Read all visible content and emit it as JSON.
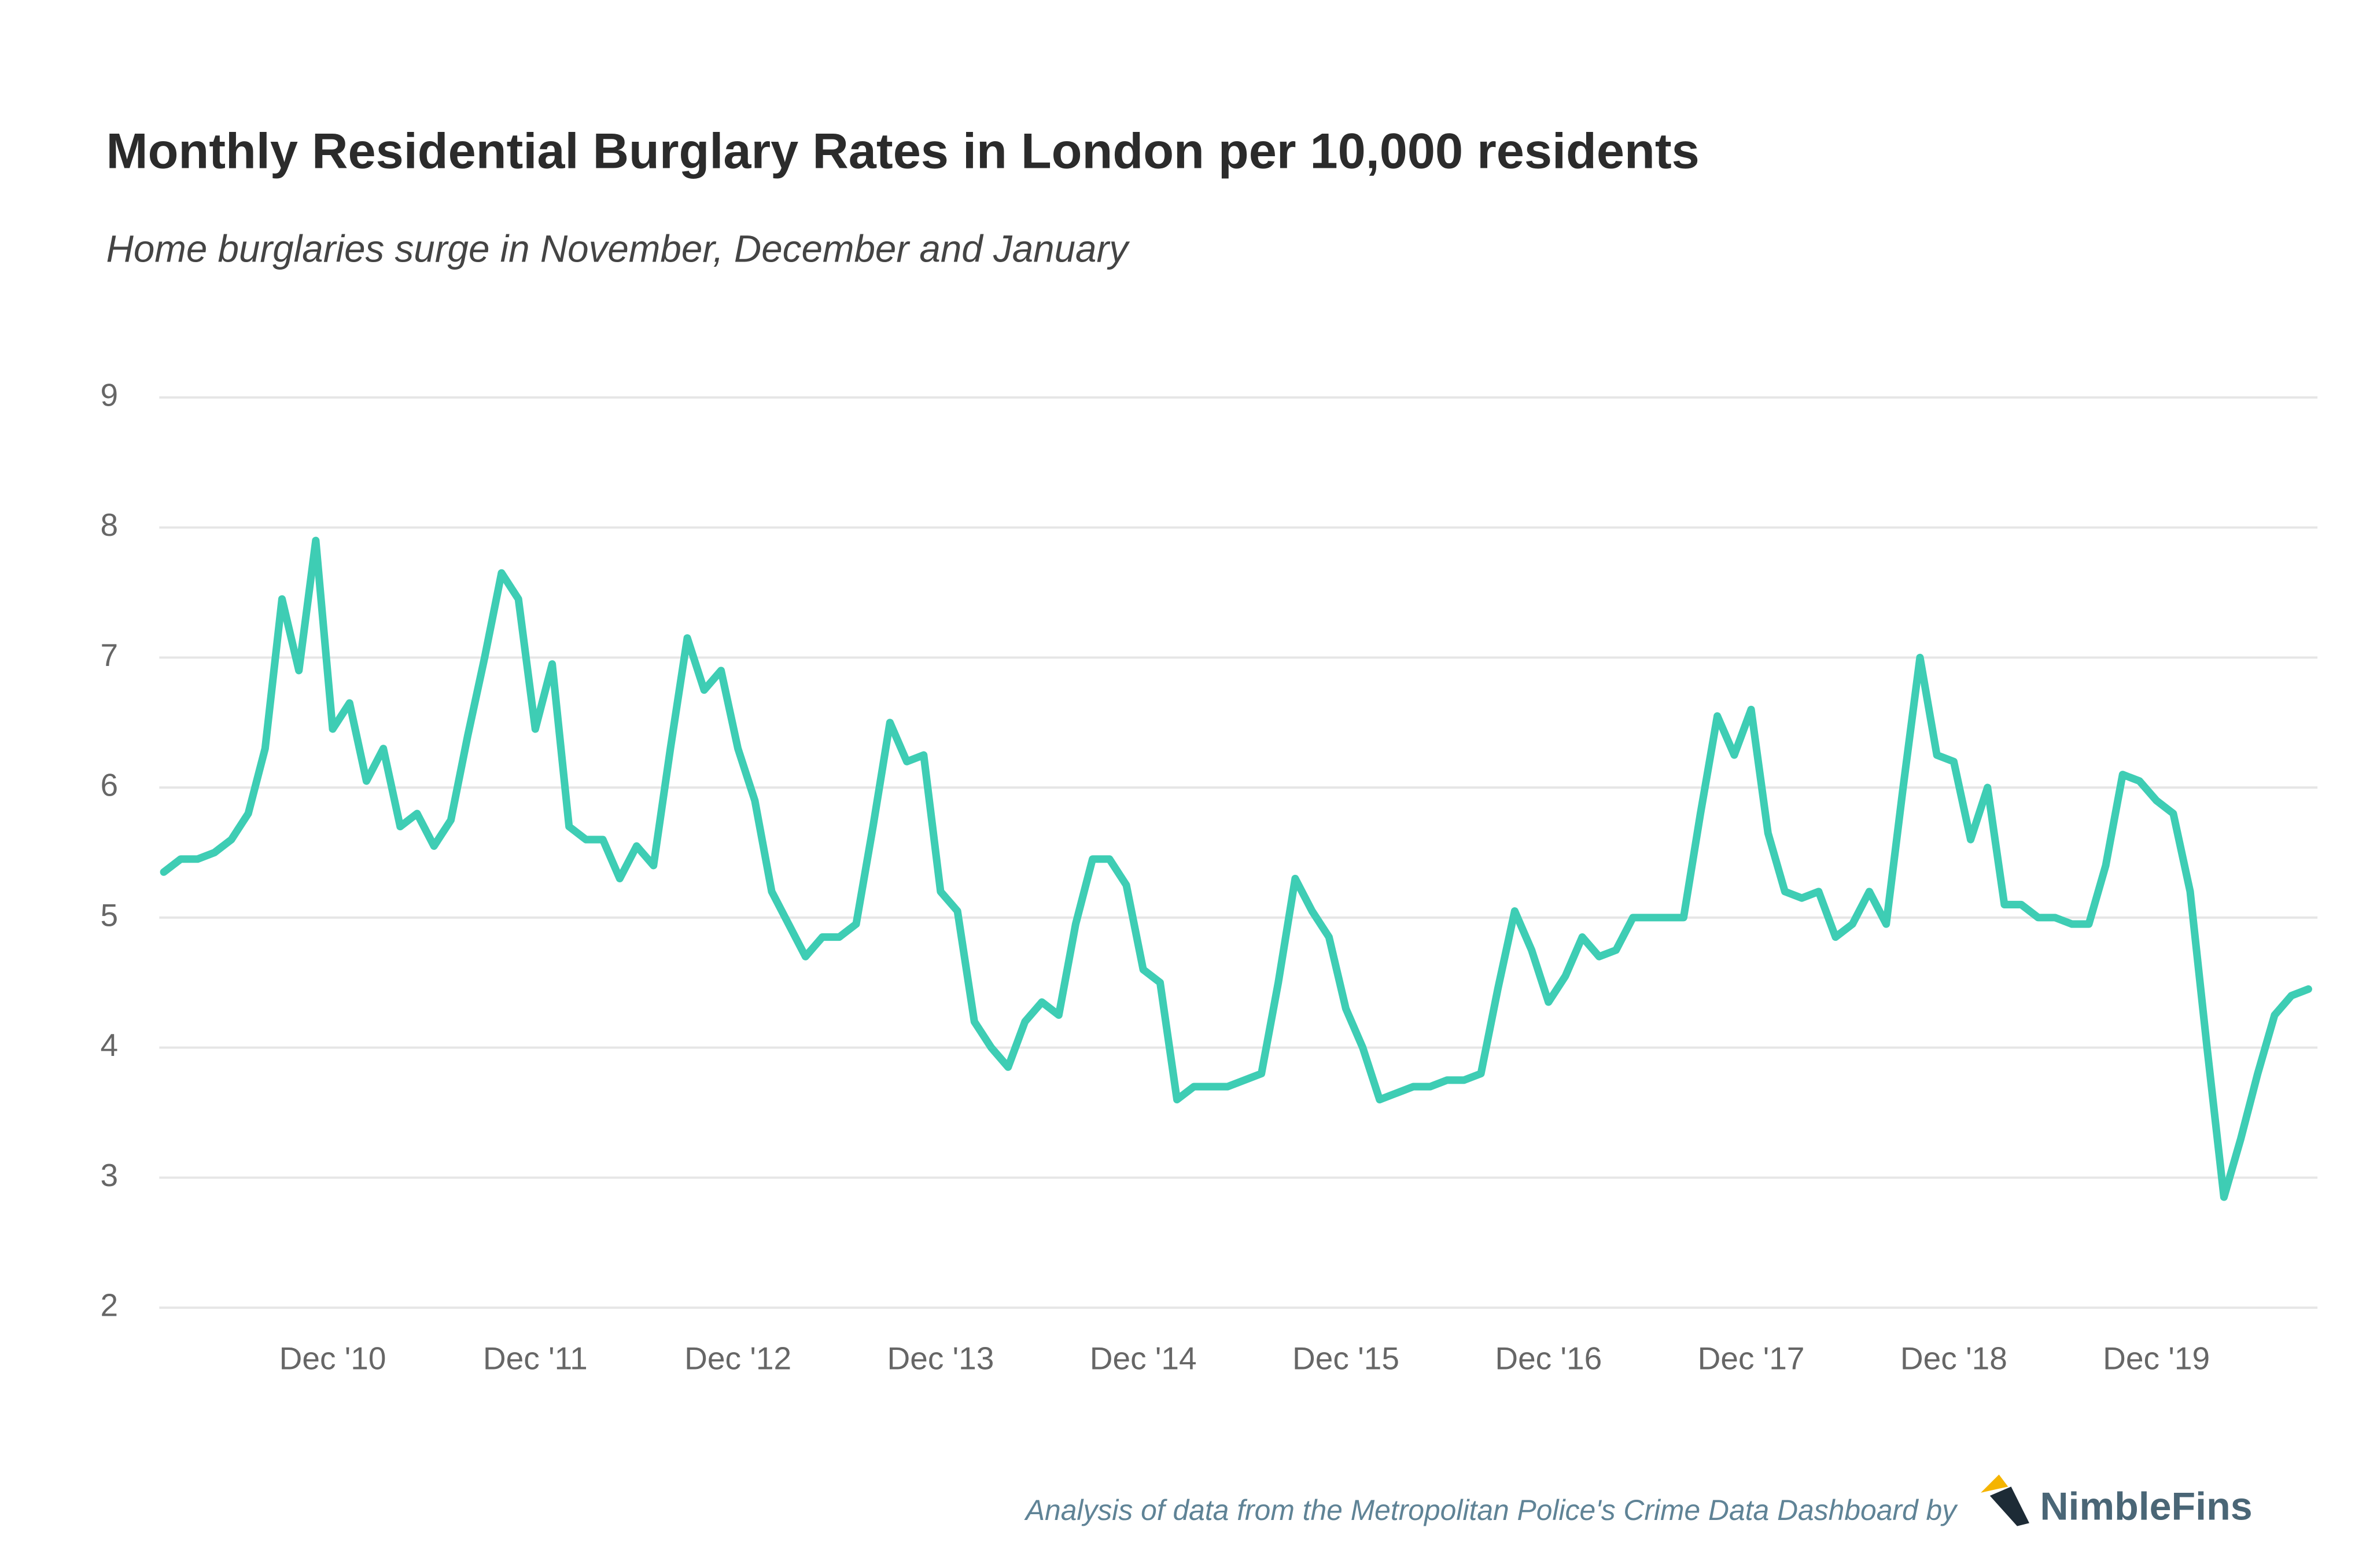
{
  "chart_data": {
    "type": "line",
    "title": "Monthly Residential Burglary Rates in London per 10,000 residents",
    "subtitle": "Home burglaries surge in November, December and January",
    "source": "Analysis of data from the Metropolitan Police's Crime Data Dashboard by",
    "brand": "NimbleFins",
    "categories": [
      null,
      null,
      null,
      null,
      null,
      null,
      null,
      null,
      null,
      null,
      "Dec '10",
      null,
      null,
      null,
      null,
      null,
      null,
      null,
      null,
      null,
      null,
      null,
      "Dec '11",
      null,
      null,
      null,
      null,
      null,
      null,
      null,
      null,
      null,
      null,
      null,
      "Dec '12",
      null,
      null,
      null,
      null,
      null,
      null,
      null,
      null,
      null,
      null,
      null,
      "Dec '13",
      null,
      null,
      null,
      null,
      null,
      null,
      null,
      null,
      null,
      null,
      null,
      "Dec '14",
      null,
      null,
      null,
      null,
      null,
      null,
      null,
      null,
      null,
      null,
      null,
      "Dec '15",
      null,
      null,
      null,
      null,
      null,
      null,
      null,
      null,
      null,
      null,
      null,
      "Dec '16",
      null,
      null,
      null,
      null,
      null,
      null,
      null,
      null,
      null,
      null,
      null,
      "Dec '17",
      null,
      null,
      null,
      null,
      null,
      null,
      null,
      null,
      null,
      null,
      null,
      "Dec '18",
      null,
      null,
      null,
      null,
      null,
      null,
      null,
      null,
      null,
      null,
      null,
      "Dec '19",
      null,
      null,
      null,
      null,
      null,
      null,
      null,
      null,
      null
    ],
    "values": [
      5.35,
      5.45,
      5.45,
      5.5,
      5.6,
      5.8,
      6.3,
      7.45,
      6.9,
      7.9,
      6.45,
      6.65,
      6.05,
      6.3,
      5.7,
      5.8,
      5.55,
      5.75,
      6.4,
      7.0,
      7.65,
      7.45,
      6.45,
      6.95,
      5.7,
      5.6,
      5.6,
      5.3,
      5.55,
      5.4,
      6.3,
      7.15,
      6.75,
      6.9,
      6.3,
      5.9,
      5.2,
      4.95,
      4.7,
      4.85,
      4.85,
      4.95,
      5.7,
      6.5,
      6.2,
      6.25,
      5.2,
      5.05,
      4.2,
      4.0,
      3.85,
      4.2,
      4.35,
      4.25,
      4.95,
      5.45,
      5.45,
      5.25,
      4.6,
      4.5,
      3.6,
      3.7,
      3.7,
      3.7,
      3.75,
      3.8,
      4.5,
      5.3,
      5.05,
      4.85,
      4.3,
      4.0,
      3.6,
      3.65,
      3.7,
      3.7,
      3.75,
      3.75,
      3.8,
      4.45,
      5.05,
      4.75,
      4.35,
      4.55,
      4.85,
      4.7,
      4.75,
      5.0,
      5.0,
      5.0,
      5.0,
      5.8,
      6.55,
      6.25,
      6.6,
      5.65,
      5.2,
      5.15,
      5.2,
      4.85,
      4.95,
      5.2,
      4.95,
      6.0,
      7.0,
      6.25,
      6.2,
      5.6,
      6.0,
      5.1,
      5.1,
      5.0,
      5.0,
      4.95,
      4.95,
      5.4,
      6.1,
      6.05,
      5.9,
      5.8,
      5.2,
      4.0,
      2.85,
      3.3,
      3.8,
      4.25,
      4.4,
      4.45
    ],
    "color": "#3ecdb4",
    "ylim": [
      2,
      9
    ],
    "yticks": [
      2,
      3,
      4,
      5,
      6,
      7,
      8,
      9
    ],
    "grid": true
  }
}
